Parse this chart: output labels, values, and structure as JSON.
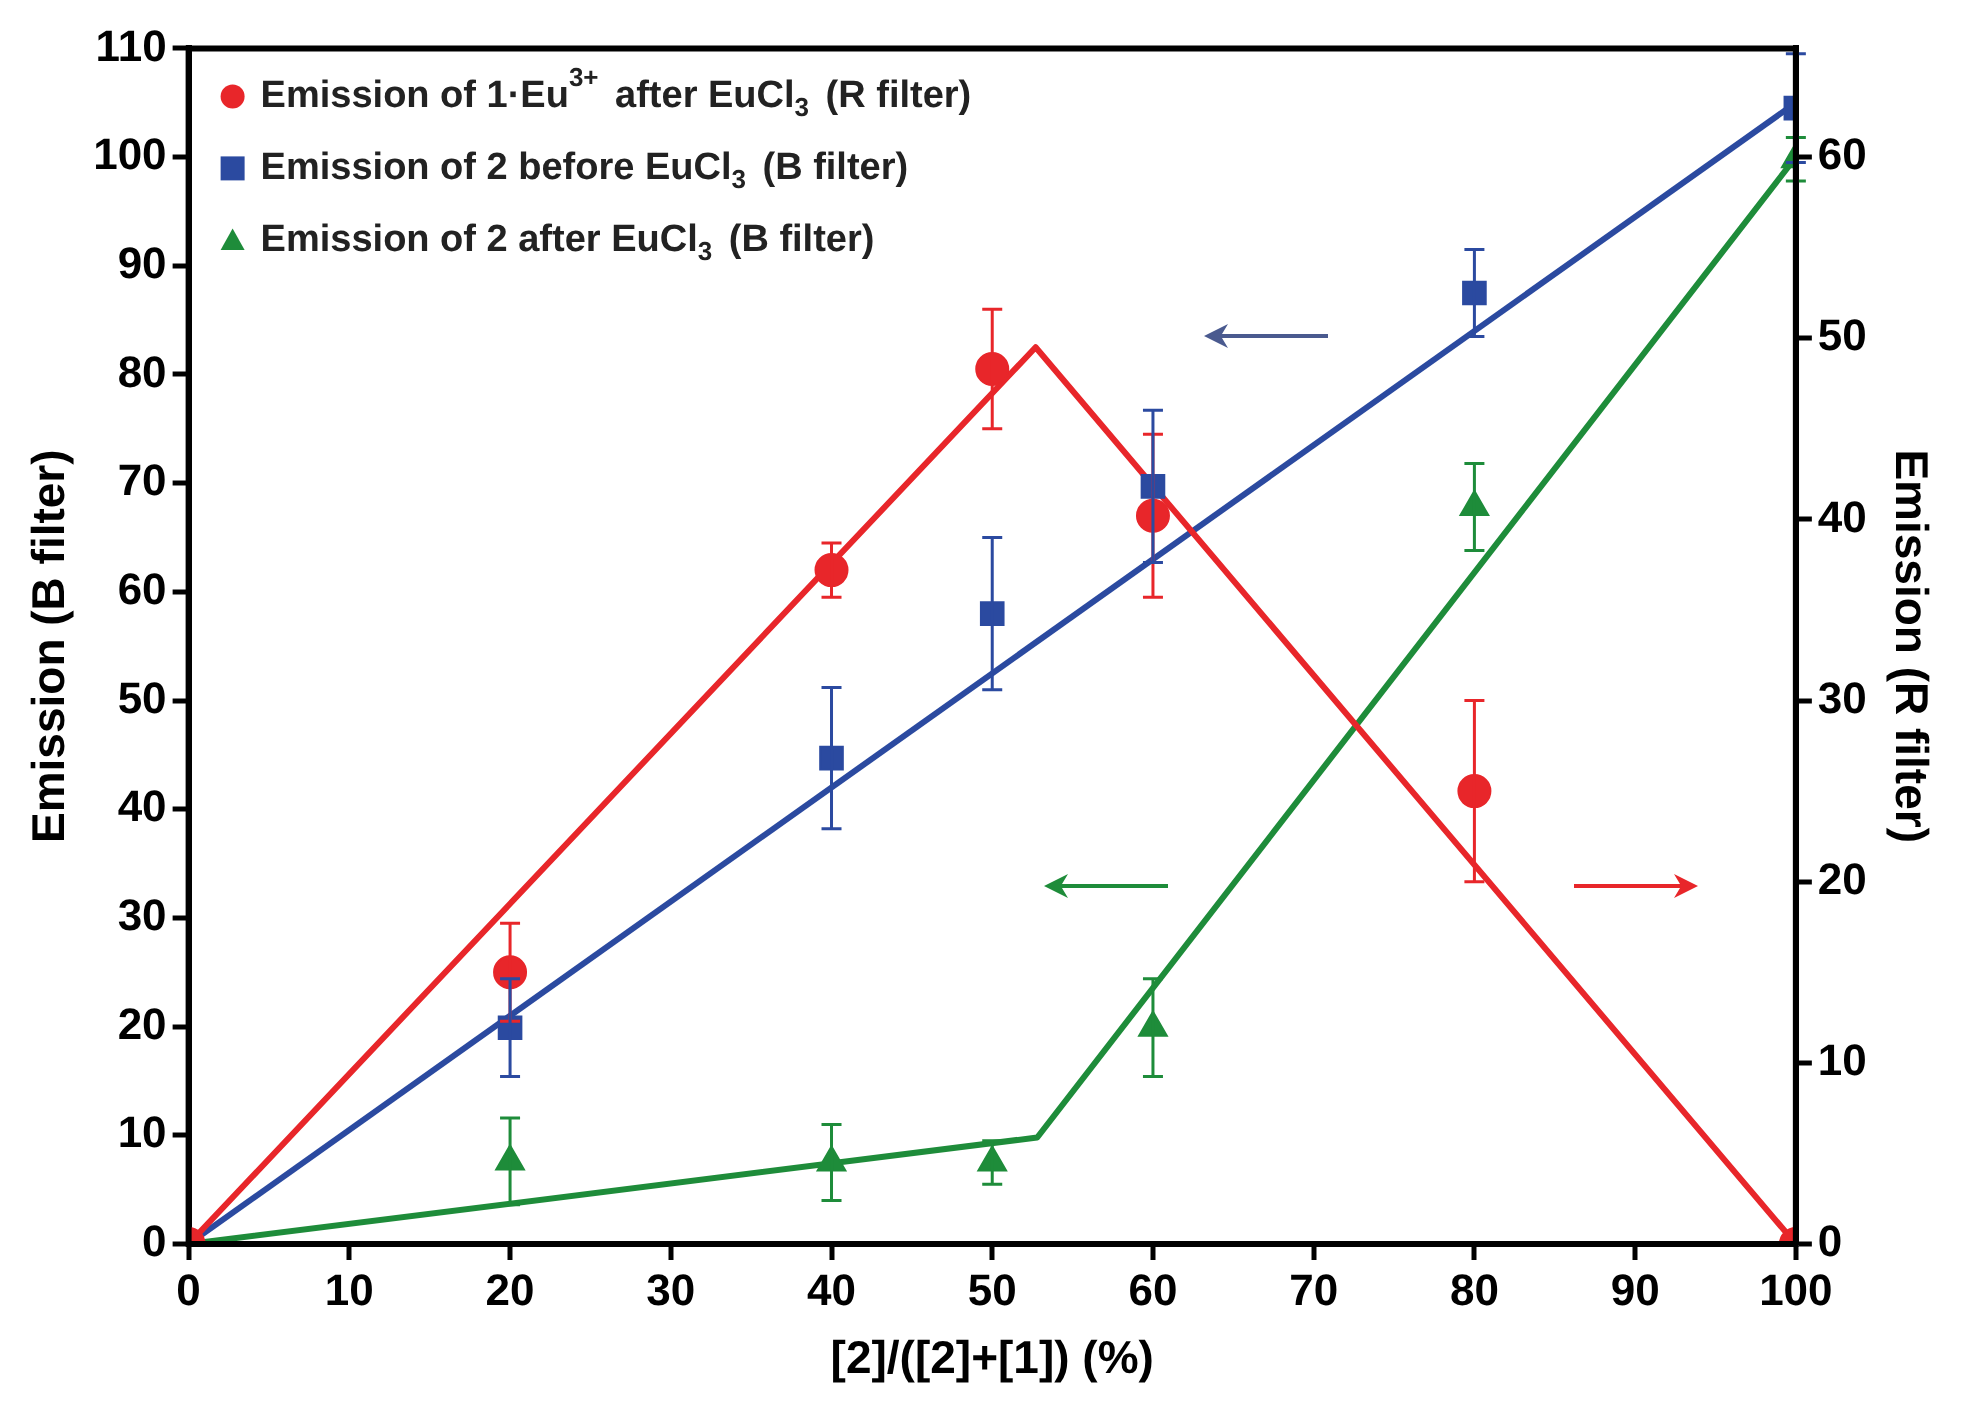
{
  "chart_data": {
    "type": "scatter",
    "xlabel": "[2]/([2]+[1]) (%)",
    "ylabel": "Emission (B filter)",
    "y2label": "Emission (R filter)",
    "xlim": [
      0,
      100
    ],
    "xticks": [
      0,
      10,
      20,
      30,
      40,
      50,
      60,
      70,
      80,
      90,
      100
    ],
    "ylim": [
      0,
      110
    ],
    "yticks": [
      0,
      10,
      20,
      30,
      40,
      50,
      60,
      70,
      80,
      90,
      100,
      110
    ],
    "y2lim": [
      0,
      66
    ],
    "y2ticks": [
      0,
      10,
      20,
      30,
      40,
      50,
      60
    ],
    "grid": false,
    "legend": "top left",
    "series": [
      {
        "name": "Emission of 1·Eu$^{3+}$ after EuCl$_{3}$ (R filter)",
        "type": "scatter",
        "axis": "y2",
        "color": "#e8262a",
        "marker": "circle",
        "x": [
          0,
          20,
          40,
          50,
          60,
          80,
          100
        ],
        "values": [
          0,
          15,
          37.2,
          48.3,
          40.2,
          25,
          0
        ],
        "errors": [
          null,
          2.7,
          1.5,
          3.3,
          4.5,
          5,
          null
        ]
      },
      {
        "name": "Emission of 2 before EuCl$_{3}$ (B filter)",
        "type": "scatter",
        "color": "#2b4aa0",
        "marker": "square",
        "x": [
          20,
          40,
          50,
          60,
          80,
          100
        ],
        "values": [
          19.9,
          44.7,
          58,
          69.7,
          87.5,
          104.5
        ],
        "errors": [
          4.5,
          6.5,
          7,
          7,
          4,
          5
        ]
      },
      {
        "name": "Emission of 2 after EuCl$_{3}$ (B filter)",
        "type": "scatter",
        "color": "#1e8c3a",
        "marker": "triangle",
        "x": [
          20,
          40,
          50,
          60,
          80,
          100
        ],
        "values": [
          7.6,
          7.5,
          7.5,
          19.9,
          67.8,
          99.8
        ],
        "errors": [
          4,
          3.5,
          2,
          4.5,
          4,
          2
        ]
      },
      {
        "type": "line",
        "axis": "y2",
        "color": "#e8262a",
        "marker": "none",
        "x": [
          0,
          52.7,
          100
        ],
        "values": [
          0,
          49.5,
          0
        ]
      },
      {
        "type": "line",
        "color": "#2b4aa0",
        "marker": "none",
        "x": [
          0,
          100
        ],
        "values": [
          0,
          105
        ]
      },
      {
        "type": "line",
        "color": "#1e8c3a",
        "marker": "none",
        "x": [
          0,
          52.8,
          100
        ],
        "values": [
          0,
          9.8,
          100
        ]
      }
    ]
  }
}
